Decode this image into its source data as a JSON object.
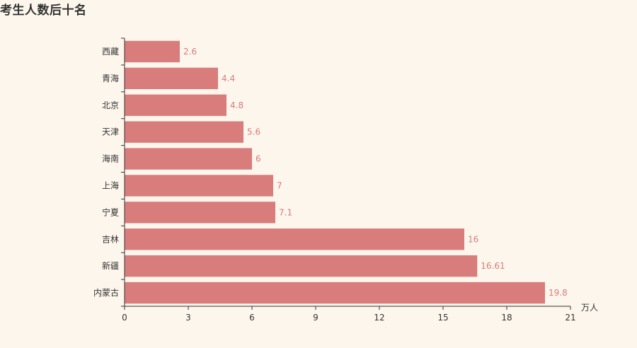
{
  "chart_data": {
    "type": "bar",
    "orientation": "horizontal",
    "title": "考生人数后十名",
    "categories": [
      "西藏",
      "青海",
      "北京",
      "天津",
      "海南",
      "上海",
      "宁夏",
      "吉林",
      "新疆",
      "内蒙古"
    ],
    "values": [
      2.6,
      4.4,
      4.8,
      5.6,
      6,
      7,
      7.1,
      16,
      16.61,
      19.8
    ],
    "value_labels": [
      "2.6",
      "4.4",
      "4.8",
      "5.6",
      "6",
      "7",
      "7.1",
      "16",
      "16.61",
      "19.8"
    ],
    "x_unit": "万人",
    "xlim": [
      0,
      21
    ],
    "x_ticks": [
      "0",
      "3",
      "6",
      "9",
      "12",
      "15",
      "18",
      "21"
    ],
    "grid": false,
    "legend": "none",
    "colors": {
      "bar": "#d87c7c",
      "data_label": "#d87c7c",
      "axis": "#333333",
      "background": "#fdf6ec"
    }
  }
}
